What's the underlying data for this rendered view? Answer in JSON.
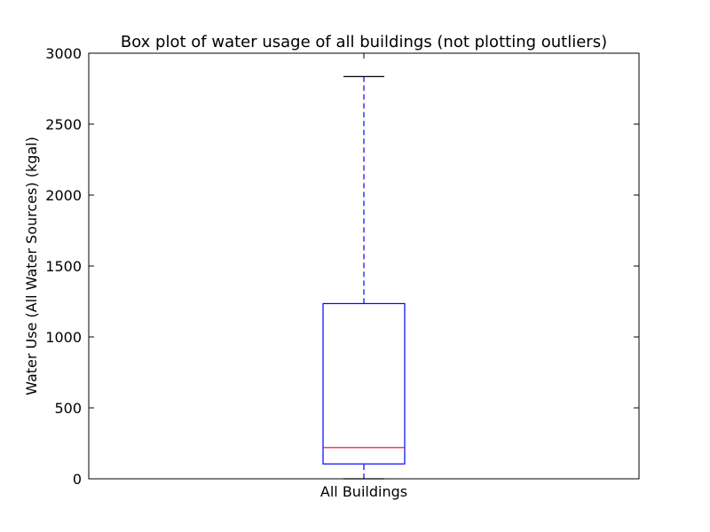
{
  "chart_data": {
    "type": "box",
    "title": "Box plot of water usage of all buildings (not plotting outliers)",
    "xlabel": "",
    "ylabel": "Water Use (All Water Sources) (kgal)",
    "categories": [
      "All Buildings"
    ],
    "ylim": [
      0,
      3000
    ],
    "yticks": [
      0,
      500,
      1000,
      1500,
      2000,
      2500,
      3000
    ],
    "grid": false,
    "boxes": [
      {
        "category": "All Buildings",
        "whisker_low": 0,
        "q1": 105,
        "median": 220,
        "q3": 1235,
        "whisker_high": 2835
      }
    ],
    "colors": {
      "box": "#0000ff",
      "median": "#ff0000",
      "whisker": "#0000ff",
      "cap": "#000000",
      "axis": "#000000"
    }
  }
}
